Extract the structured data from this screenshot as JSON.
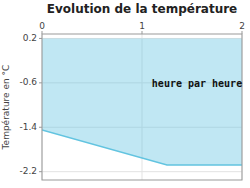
{
  "chart_data": {
    "type": "area",
    "title": "Evolution de la température",
    "ylabel": "Température en °C",
    "x": [
      0,
      1.25,
      2
    ],
    "values": [
      -1.45,
      -2.08,
      -2.08
    ],
    "fill_top": 0.2,
    "color": "#62c4e0",
    "xlim": [
      0,
      2
    ],
    "ylim": [
      -2.35,
      0.28
    ],
    "xticks": [
      0,
      1,
      2
    ],
    "yticks": [
      0.2,
      -0.6,
      -1.4,
      -2.2
    ],
    "grid": true,
    "annotations": [
      {
        "text": "heure par heure",
        "x": 1.55,
        "y": -0.62
      }
    ]
  }
}
